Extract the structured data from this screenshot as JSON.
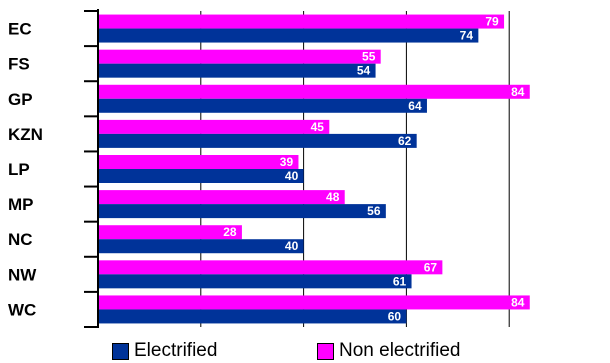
{
  "chart_data": {
    "type": "bar",
    "orientation": "horizontal",
    "title": "",
    "xlabel": "",
    "ylabel": "",
    "xlim": [
      0,
      100
    ],
    "grid": true,
    "legend_position": "bottom",
    "categories": [
      "EC",
      "FS",
      "GP",
      "KZN",
      "LP",
      "MP",
      "NC",
      "NW",
      "WC"
    ],
    "series": [
      {
        "name": "Non electrified",
        "color": "#ff00ff",
        "values": [
          79,
          55,
          84,
          45,
          39,
          48,
          28,
          67,
          84
        ]
      },
      {
        "name": "Electrified",
        "color": "#003399",
        "values": [
          74,
          54,
          64,
          62,
          40,
          56,
          40,
          61,
          60
        ]
      }
    ]
  },
  "legend": {
    "electrified_label": "Electrified",
    "non_electrified_label": "Non electrified",
    "electrified_color": "#003399",
    "non_electrified_color": "#ff00ff"
  }
}
